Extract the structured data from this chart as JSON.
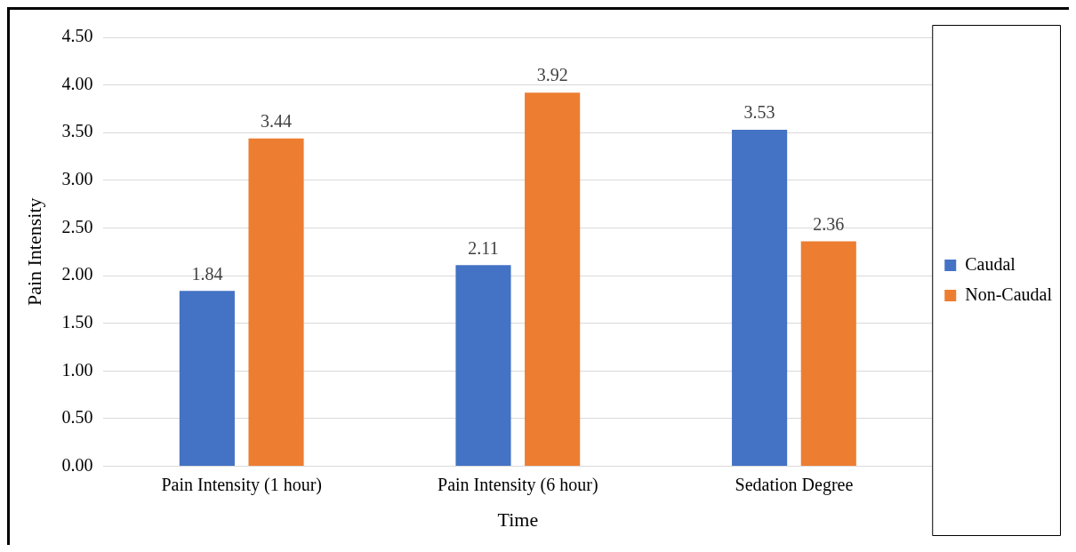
{
  "chart_data": {
    "type": "bar",
    "xlabel": "Time",
    "ylabel": "Pain Intensity",
    "categories": [
      "Pain Intensity (1 hour)",
      "Pain Intensity (6 hour)",
      "Sedation Degree"
    ],
    "series": [
      {
        "name": "Caudal",
        "color": "#4472c4",
        "values": [
          1.84,
          2.11,
          3.53
        ]
      },
      {
        "name": "Non-Caudal",
        "color": "#ed7d31",
        "values": [
          3.44,
          3.92,
          2.36
        ]
      }
    ],
    "value_labels": [
      [
        "1.84",
        "2.11",
        "3.53"
      ],
      [
        "3.44",
        "3.92",
        "2.36"
      ]
    ],
    "ylim": [
      0,
      4.5
    ],
    "yticks": [
      {
        "value": 0,
        "label": "0.00"
      },
      {
        "value": 0.5,
        "label": "0.50"
      },
      {
        "value": 1,
        "label": "1.00"
      },
      {
        "value": 1.5,
        "label": "1.50"
      },
      {
        "value": 2,
        "label": "2.00"
      },
      {
        "value": 2.5,
        "label": "2.50"
      },
      {
        "value": 3,
        "label": "3.00"
      },
      {
        "value": 3.5,
        "label": "3.50"
      },
      {
        "value": 4,
        "label": "4.00"
      },
      {
        "value": 4.5,
        "label": "4.50"
      }
    ],
    "grid": "y",
    "legend": "right"
  }
}
